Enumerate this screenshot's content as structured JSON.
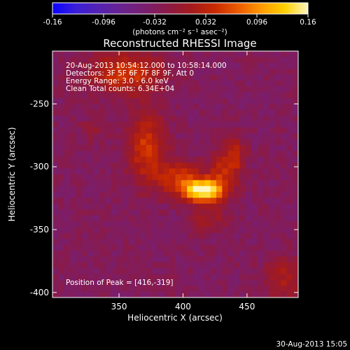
{
  "colors": {
    "background": "#000000",
    "foreground": "#ffffff",
    "colormap": [
      "#0a00ff",
      "#3a1fd8",
      "#5522b0",
      "#6a228f",
      "#7a1e6e",
      "#8c1a44",
      "#a41a1c",
      "#c92a00",
      "#ec5b00",
      "#ff9a00",
      "#ffd000",
      "#fff6c0"
    ]
  },
  "footer": {
    "date": "30-Aug-2013 15:05"
  },
  "chart_data": {
    "type": "heatmap",
    "title": "Reconstructed RHESSI Image",
    "xlabel": "Heliocentric X (arcsec)",
    "ylabel": "Heliocentric Y (arcsec)",
    "xlim": [
      298,
      490
    ],
    "ylim": [
      -404,
      -208
    ],
    "x_ticks": [
      350,
      400,
      450
    ],
    "y_ticks": [
      -250,
      -300,
      -350,
      -400
    ],
    "x_tick_labels": [
      "350",
      "400",
      "450"
    ],
    "y_tick_labels": [
      "-250",
      "-300",
      "-350",
      "-400"
    ],
    "colorbar": {
      "min": -0.16,
      "max": 0.16,
      "ticks": [
        -0.16,
        -0.096,
        -0.032,
        0.032,
        0.096,
        0.16
      ],
      "tick_labels": [
        "-0.16",
        "-0.096",
        "-0.032",
        "0.032",
        "0.096",
        "0.16"
      ],
      "label": "(photons cm⁻² s⁻¹ asec⁻²)"
    },
    "annotations": [
      "20-Aug-2013 10:54:12.000 to 10:58:14.000",
      "Detectors: 3F 5F 6F 7F 8F 9F, Att 0",
      "Energy Range: 3.0 - 6.0 keV",
      "Clean    Total counts: 6.34E+04"
    ],
    "peak_label": "Position of Peak = [416,-319]",
    "peak": {
      "x": 416,
      "y": -319,
      "value": 0.16
    },
    "background_level": -0.03,
    "sources": [
      {
        "x": 416,
        "y": -319,
        "sx": 10,
        "sy": 6,
        "amp": 0.19
      },
      {
        "x": 398,
        "y": -310,
        "sx": 12,
        "sy": 9,
        "amp": 0.08
      },
      {
        "x": 432,
        "y": -305,
        "sx": 9,
        "sy": 11,
        "amp": 0.06
      },
      {
        "x": 440,
        "y": -290,
        "sx": 6,
        "sy": 10,
        "amp": 0.05
      },
      {
        "x": 372,
        "y": -285,
        "sx": 10,
        "sy": 20,
        "amp": 0.08
      },
      {
        "x": 355,
        "y": -225,
        "sx": 20,
        "sy": 12,
        "amp": 0.08
      },
      {
        "x": 420,
        "y": -340,
        "sx": 10,
        "sy": 8,
        "amp": 0.04
      },
      {
        "x": 480,
        "y": -390,
        "sx": 12,
        "sy": 12,
        "amp": 0.05
      },
      {
        "x": 330,
        "y": -270,
        "sx": 8,
        "sy": 8,
        "amp": 0.02
      }
    ]
  }
}
